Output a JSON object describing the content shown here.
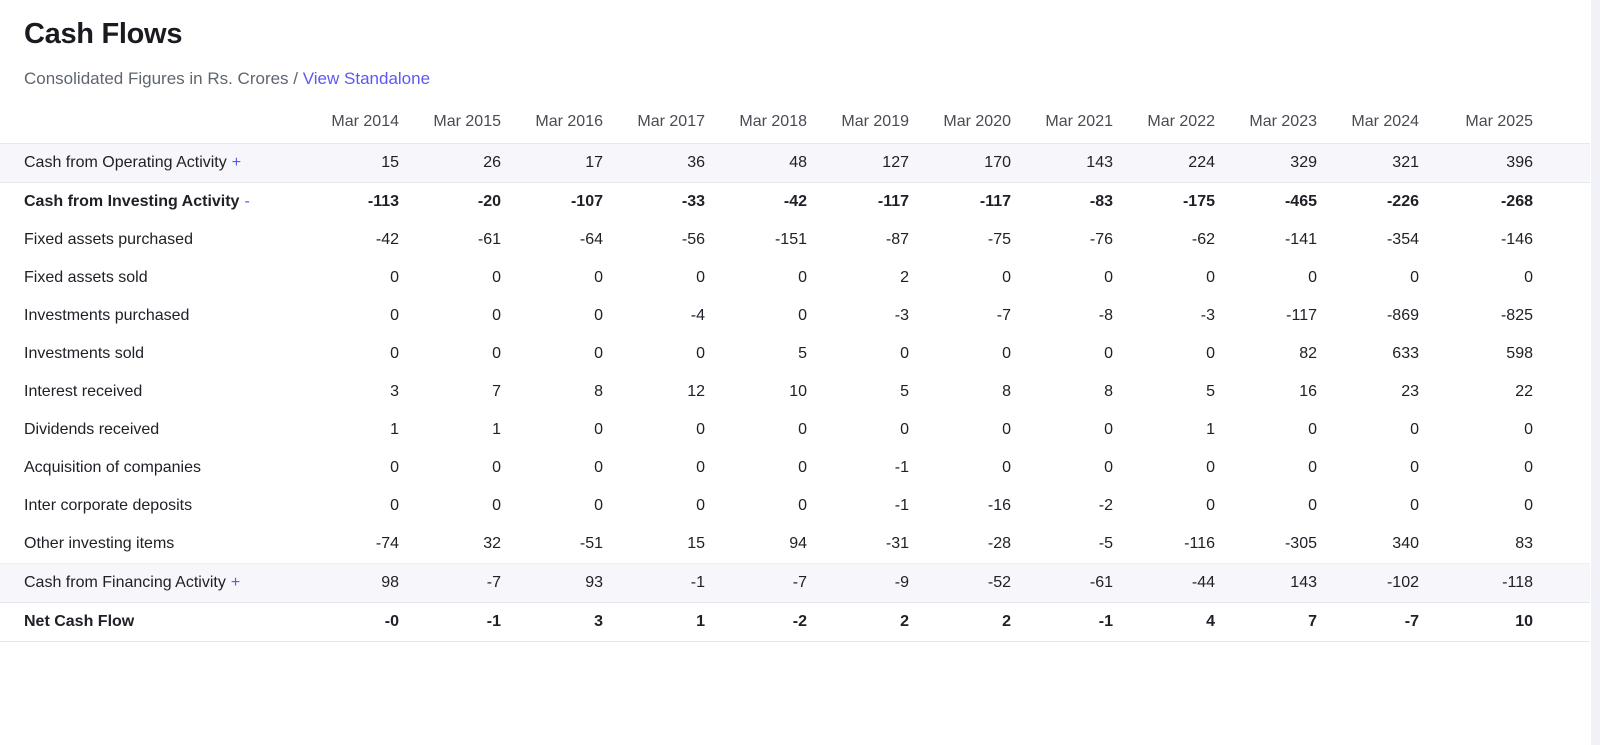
{
  "page": {
    "title": "Cash Flows",
    "subtitle": "Consolidated Figures in Rs. Crores /",
    "standalone_link": "View Standalone"
  },
  "colors": {
    "accent": "#5d59f0",
    "stripe_background": "#f6f6fb",
    "border": "#e6e8f0",
    "text": "#202128",
    "muted_text": "#5f6670",
    "header_text": "#484b54"
  },
  "table": {
    "columns": [
      "Mar 2014",
      "Mar 2015",
      "Mar 2016",
      "Mar 2017",
      "Mar 2018",
      "Mar 2019",
      "Mar 2020",
      "Mar 2021",
      "Mar 2022",
      "Mar 2023",
      "Mar 2024",
      "Mar 2025"
    ],
    "rows": [
      {
        "label": "Cash from Operating Activity",
        "toggle": "+",
        "style": "stripe",
        "values": [
          "15",
          "26",
          "17",
          "36",
          "48",
          "127",
          "170",
          "143",
          "224",
          "329",
          "321",
          "396"
        ]
      },
      {
        "label": "Cash from Investing Activity",
        "toggle": "-",
        "style": "strong",
        "values": [
          "-113",
          "-20",
          "-107",
          "-33",
          "-42",
          "-117",
          "-117",
          "-83",
          "-175",
          "-465",
          "-226",
          "-268"
        ]
      },
      {
        "label": "Fixed assets purchased",
        "style": "plain",
        "values": [
          "-42",
          "-61",
          "-64",
          "-56",
          "-151",
          "-87",
          "-75",
          "-76",
          "-62",
          "-141",
          "-354",
          "-146"
        ]
      },
      {
        "label": "Fixed assets sold",
        "style": "plain",
        "values": [
          "0",
          "0",
          "0",
          "0",
          "0",
          "2",
          "0",
          "0",
          "0",
          "0",
          "0",
          "0"
        ]
      },
      {
        "label": "Investments purchased",
        "style": "plain",
        "values": [
          "0",
          "0",
          "0",
          "-4",
          "0",
          "-3",
          "-7",
          "-8",
          "-3",
          "-117",
          "-869",
          "-825"
        ]
      },
      {
        "label": "Investments sold",
        "style": "plain",
        "values": [
          "0",
          "0",
          "0",
          "0",
          "5",
          "0",
          "0",
          "0",
          "0",
          "82",
          "633",
          "598"
        ]
      },
      {
        "label": "Interest received",
        "style": "plain",
        "values": [
          "3",
          "7",
          "8",
          "12",
          "10",
          "5",
          "8",
          "8",
          "5",
          "16",
          "23",
          "22"
        ]
      },
      {
        "label": "Dividends received",
        "style": "plain",
        "values": [
          "1",
          "1",
          "0",
          "0",
          "0",
          "0",
          "0",
          "0",
          "1",
          "0",
          "0",
          "0"
        ]
      },
      {
        "label": "Acquisition of companies",
        "style": "plain",
        "values": [
          "0",
          "0",
          "0",
          "0",
          "0",
          "-1",
          "0",
          "0",
          "0",
          "0",
          "0",
          "0"
        ]
      },
      {
        "label": "Inter corporate deposits",
        "style": "plain",
        "values": [
          "0",
          "0",
          "0",
          "0",
          "0",
          "-1",
          "-16",
          "-2",
          "0",
          "0",
          "0",
          "0"
        ]
      },
      {
        "label": "Other investing items",
        "style": "plain",
        "values": [
          "-74",
          "32",
          "-51",
          "15",
          "94",
          "-31",
          "-28",
          "-5",
          "-116",
          "-305",
          "340",
          "83"
        ]
      },
      {
        "label": "Cash from Financing Activity",
        "toggle": "+",
        "style": "stripe",
        "values": [
          "98",
          "-7",
          "93",
          "-1",
          "-7",
          "-9",
          "-52",
          "-61",
          "-44",
          "143",
          "-102",
          "-118"
        ]
      },
      {
        "label": "Net Cash Flow",
        "style": "total",
        "values": [
          "-0",
          "-1",
          "3",
          "1",
          "-2",
          "2",
          "2",
          "-1",
          "4",
          "7",
          "-7",
          "10"
        ]
      }
    ]
  }
}
